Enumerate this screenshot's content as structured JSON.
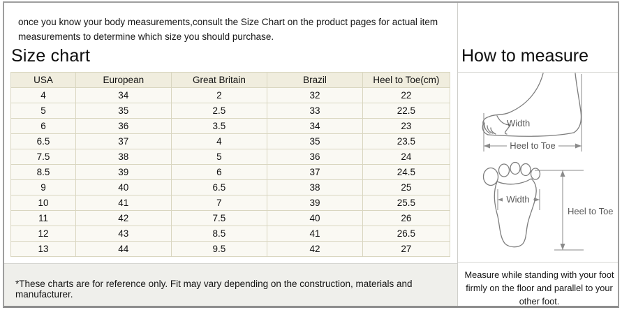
{
  "intro_text": "once you know your body measurements,consult the Size Chart on the product pages for actual item measurements to determine which size you should purchase.",
  "left_panel": {
    "title": "Size chart",
    "footnote": "*These charts are for reference only. Fit may vary depending on the construction, materials and manufacturer."
  },
  "table": {
    "headers": [
      "USA",
      "European",
      "Great Britain",
      "Brazil",
      "Heel to Toe(cm)"
    ],
    "rows": [
      [
        "4",
        "34",
        "2",
        "32",
        "22"
      ],
      [
        "5",
        "35",
        "2.5",
        "33",
        "22.5"
      ],
      [
        "6",
        "36",
        "3.5",
        "34",
        "23"
      ],
      [
        "6.5",
        "37",
        "4",
        "35",
        "23.5"
      ],
      [
        "7.5",
        "38",
        "5",
        "36",
        "24"
      ],
      [
        "8.5",
        "39",
        "6",
        "37",
        "24.5"
      ],
      [
        "9",
        "40",
        "6.5",
        "38",
        "25"
      ],
      [
        "10",
        "41",
        "7",
        "39",
        "25.5"
      ],
      [
        "11",
        "42",
        "7.5",
        "40",
        "26"
      ],
      [
        "12",
        "43",
        "8.5",
        "41",
        "26.5"
      ],
      [
        "13",
        "44",
        "9.5",
        "42",
        "27"
      ]
    ]
  },
  "right_panel": {
    "title": "How to measure",
    "side_view_diagram": {
      "width_label": "Width",
      "length_label": "Heel to Toe"
    },
    "footprint_diagram": {
      "width_label": "Width",
      "length_label": "Heel to Toe"
    },
    "note": "Measure while standing with your foot firmly on the floor and parallel to your other foot."
  },
  "colors": {
    "table_header_bg": "#f0edde",
    "table_cell_bg": "#faf9f3",
    "table_border": "#d9d6c0",
    "frame_border": "#9e9e9e",
    "panel_divider": "#cfcfcb",
    "footnote_band_bg": "#efefeb",
    "diagram_stroke": "#7d7d7d"
  }
}
